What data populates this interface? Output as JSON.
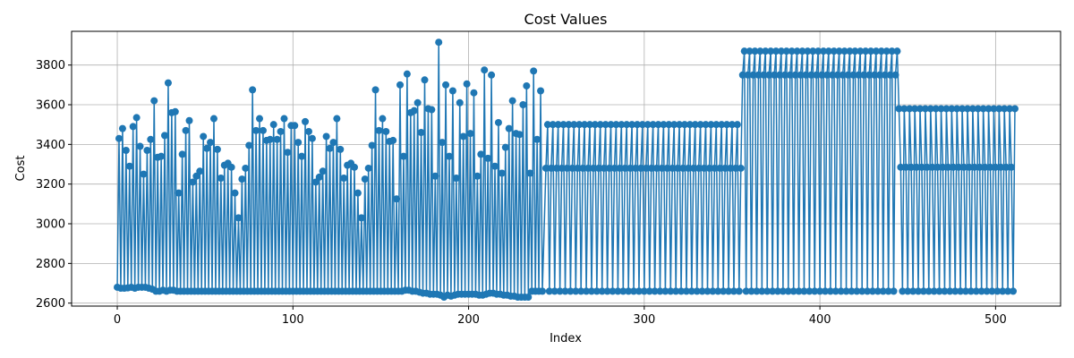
{
  "chart_data": {
    "type": "line",
    "title": "Cost Values",
    "xlabel": "Index",
    "ylabel": "Cost",
    "xlim": [
      -26,
      537
    ],
    "ylim": [
      2585,
      3970
    ],
    "xticks": [
      0,
      100,
      200,
      300,
      400,
      500
    ],
    "yticks": [
      2600,
      2800,
      3000,
      3200,
      3400,
      3600,
      3800
    ],
    "grid": true,
    "legend": "none",
    "color": "#1f77b4",
    "marker": "circle",
    "series": [
      {
        "values": [
          2680,
          3430,
          2675,
          3480,
          2675,
          3370,
          2677,
          3290,
          2680,
          3490,
          2675,
          3535,
          2680,
          3390,
          2680,
          3250,
          2680,
          3370,
          2675,
          3425,
          2670,
          3620,
          2660,
          3335,
          2660,
          3340,
          2665,
          3445,
          2660,
          3710,
          2665,
          3560,
          2665,
          3565,
          2660,
          3155,
          2660,
          3350,
          2660,
          3470,
          2660,
          3520,
          2660,
          3210,
          2660,
          3240,
          2660,
          3265,
          2660,
          3440,
          2660,
          3380,
          2660,
          3410,
          2660,
          3530,
          2660,
          3375,
          2660,
          3230,
          2660,
          3295,
          2660,
          3305,
          2660,
          3285,
          2660,
          3155,
          2660,
          3030,
          2660,
          3225,
          2660,
          3280,
          2660,
          3395,
          2660,
          3675,
          2660,
          3470,
          2660,
          3530,
          2660,
          3470,
          2660,
          3420,
          2660,
          3425,
          2660,
          3500,
          2660,
          3425,
          2660,
          3465,
          2660,
          3530,
          2660,
          3360,
          2660,
          3495,
          2660,
          3495,
          2660,
          3410,
          2660,
          3340,
          2660,
          3515,
          2660,
          3465,
          2660,
          3430,
          2660,
          3210,
          2660,
          3235,
          2660,
          3265,
          2660,
          3440,
          2660,
          3380,
          2660,
          3410,
          2660,
          3530,
          2660,
          3375,
          2660,
          3230,
          2660,
          3295,
          2660,
          3305,
          2660,
          3285,
          2660,
          3155,
          2660,
          3030,
          2660,
          3225,
          2660,
          3280,
          2660,
          3395,
          2660,
          3675,
          2660,
          3470,
          2660,
          3530,
          2660,
          3465,
          2660,
          3415,
          2660,
          3420,
          2660,
          3125,
          2660,
          3700,
          2660,
          3340,
          2665,
          3755,
          2665,
          3560,
          2660,
          3570,
          2660,
          3610,
          2655,
          3460,
          2650,
          3725,
          2650,
          3580,
          2645,
          3575,
          2645,
          3240,
          2645,
          3915,
          2640,
          3410,
          2630,
          3700,
          2640,
          3340,
          2635,
          3670,
          2640,
          3230,
          2645,
          3610,
          2645,
          3440,
          2645,
          3705,
          2645,
          3455,
          2645,
          3660,
          2645,
          3240,
          2640,
          3350,
          2640,
          3775,
          2645,
          3330,
          2650,
          3750,
          2650,
          3290,
          2645,
          3510,
          2645,
          3255,
          2640,
          3385,
          2640,
          3480,
          2635,
          3620,
          2635,
          3455,
          2630,
          3450,
          2630,
          3600,
          2630,
          3695,
          2630,
          3255,
          2660,
          3770,
          2660,
          3425,
          2660,
          3670,
          2660
        ]
      },
      {
        "pattern": [
          3280,
          3500,
          2660
        ],
        "start_index": 244,
        "end_index": 355
      },
      {
        "pattern": [
          3750,
          3870,
          2660
        ],
        "start_index": 356,
        "end_index": 444
      },
      {
        "pattern": [
          3580,
          3285,
          2660
        ],
        "start_index": 445,
        "end_index": 511
      }
    ]
  }
}
